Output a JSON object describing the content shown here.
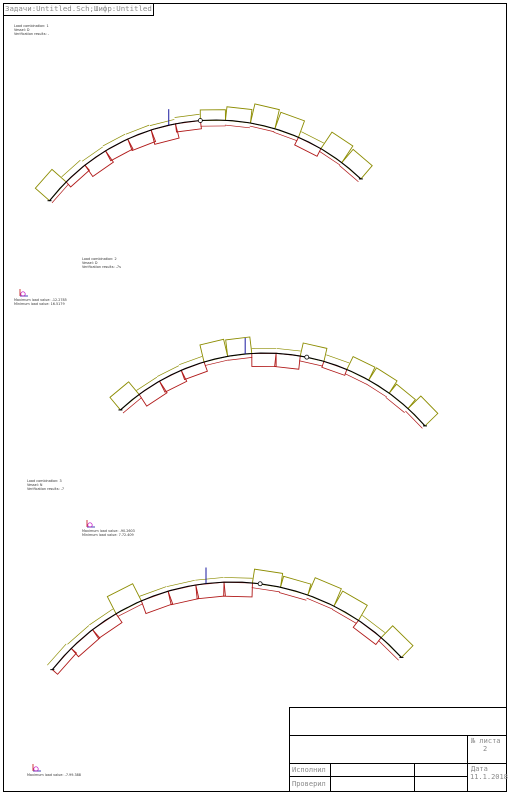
{
  "sheet": {
    "title_tab": "Задачи:Untitled.Sch;Шифр:Untitled"
  },
  "diagrams": [
    {
      "info_lines": [
        "Load combination: 1",
        "Vessel: D",
        "Verification results: -"
      ],
      "markers": [
        "",
        ""
      ]
    },
    {
      "info_lines": [
        "Load combination: 2",
        "Vessel: D",
        "Verification results: -7s"
      ],
      "markers": [
        "Maximum load value: -12.2785",
        "Minimum load value: 16.5179"
      ]
    },
    {
      "info_lines": [
        "Load combination: 3",
        "Vessel: N",
        "Verification results: -7"
      ],
      "markers": [
        "Maximum load value: -90.2603",
        "Minimum load value: 7.72.409"
      ]
    }
  ],
  "bottom_marker": "Maximum load value: -7.99.388",
  "stamp": {
    "sheet_no_label": "№ листа",
    "sheet_no_value": "2",
    "executor_label": "Исполнил",
    "checked_label": "Проверил",
    "date_label": "Дата",
    "date_value": "11.1.2018"
  },
  "colors": {
    "curve": "#000000",
    "red_diagram": "#b01818",
    "olive_diagram": "#8c8c00",
    "marker_blue": "#1a1aa0",
    "marker_red": "#c01010",
    "marker_magenta": "#c000c0"
  }
}
